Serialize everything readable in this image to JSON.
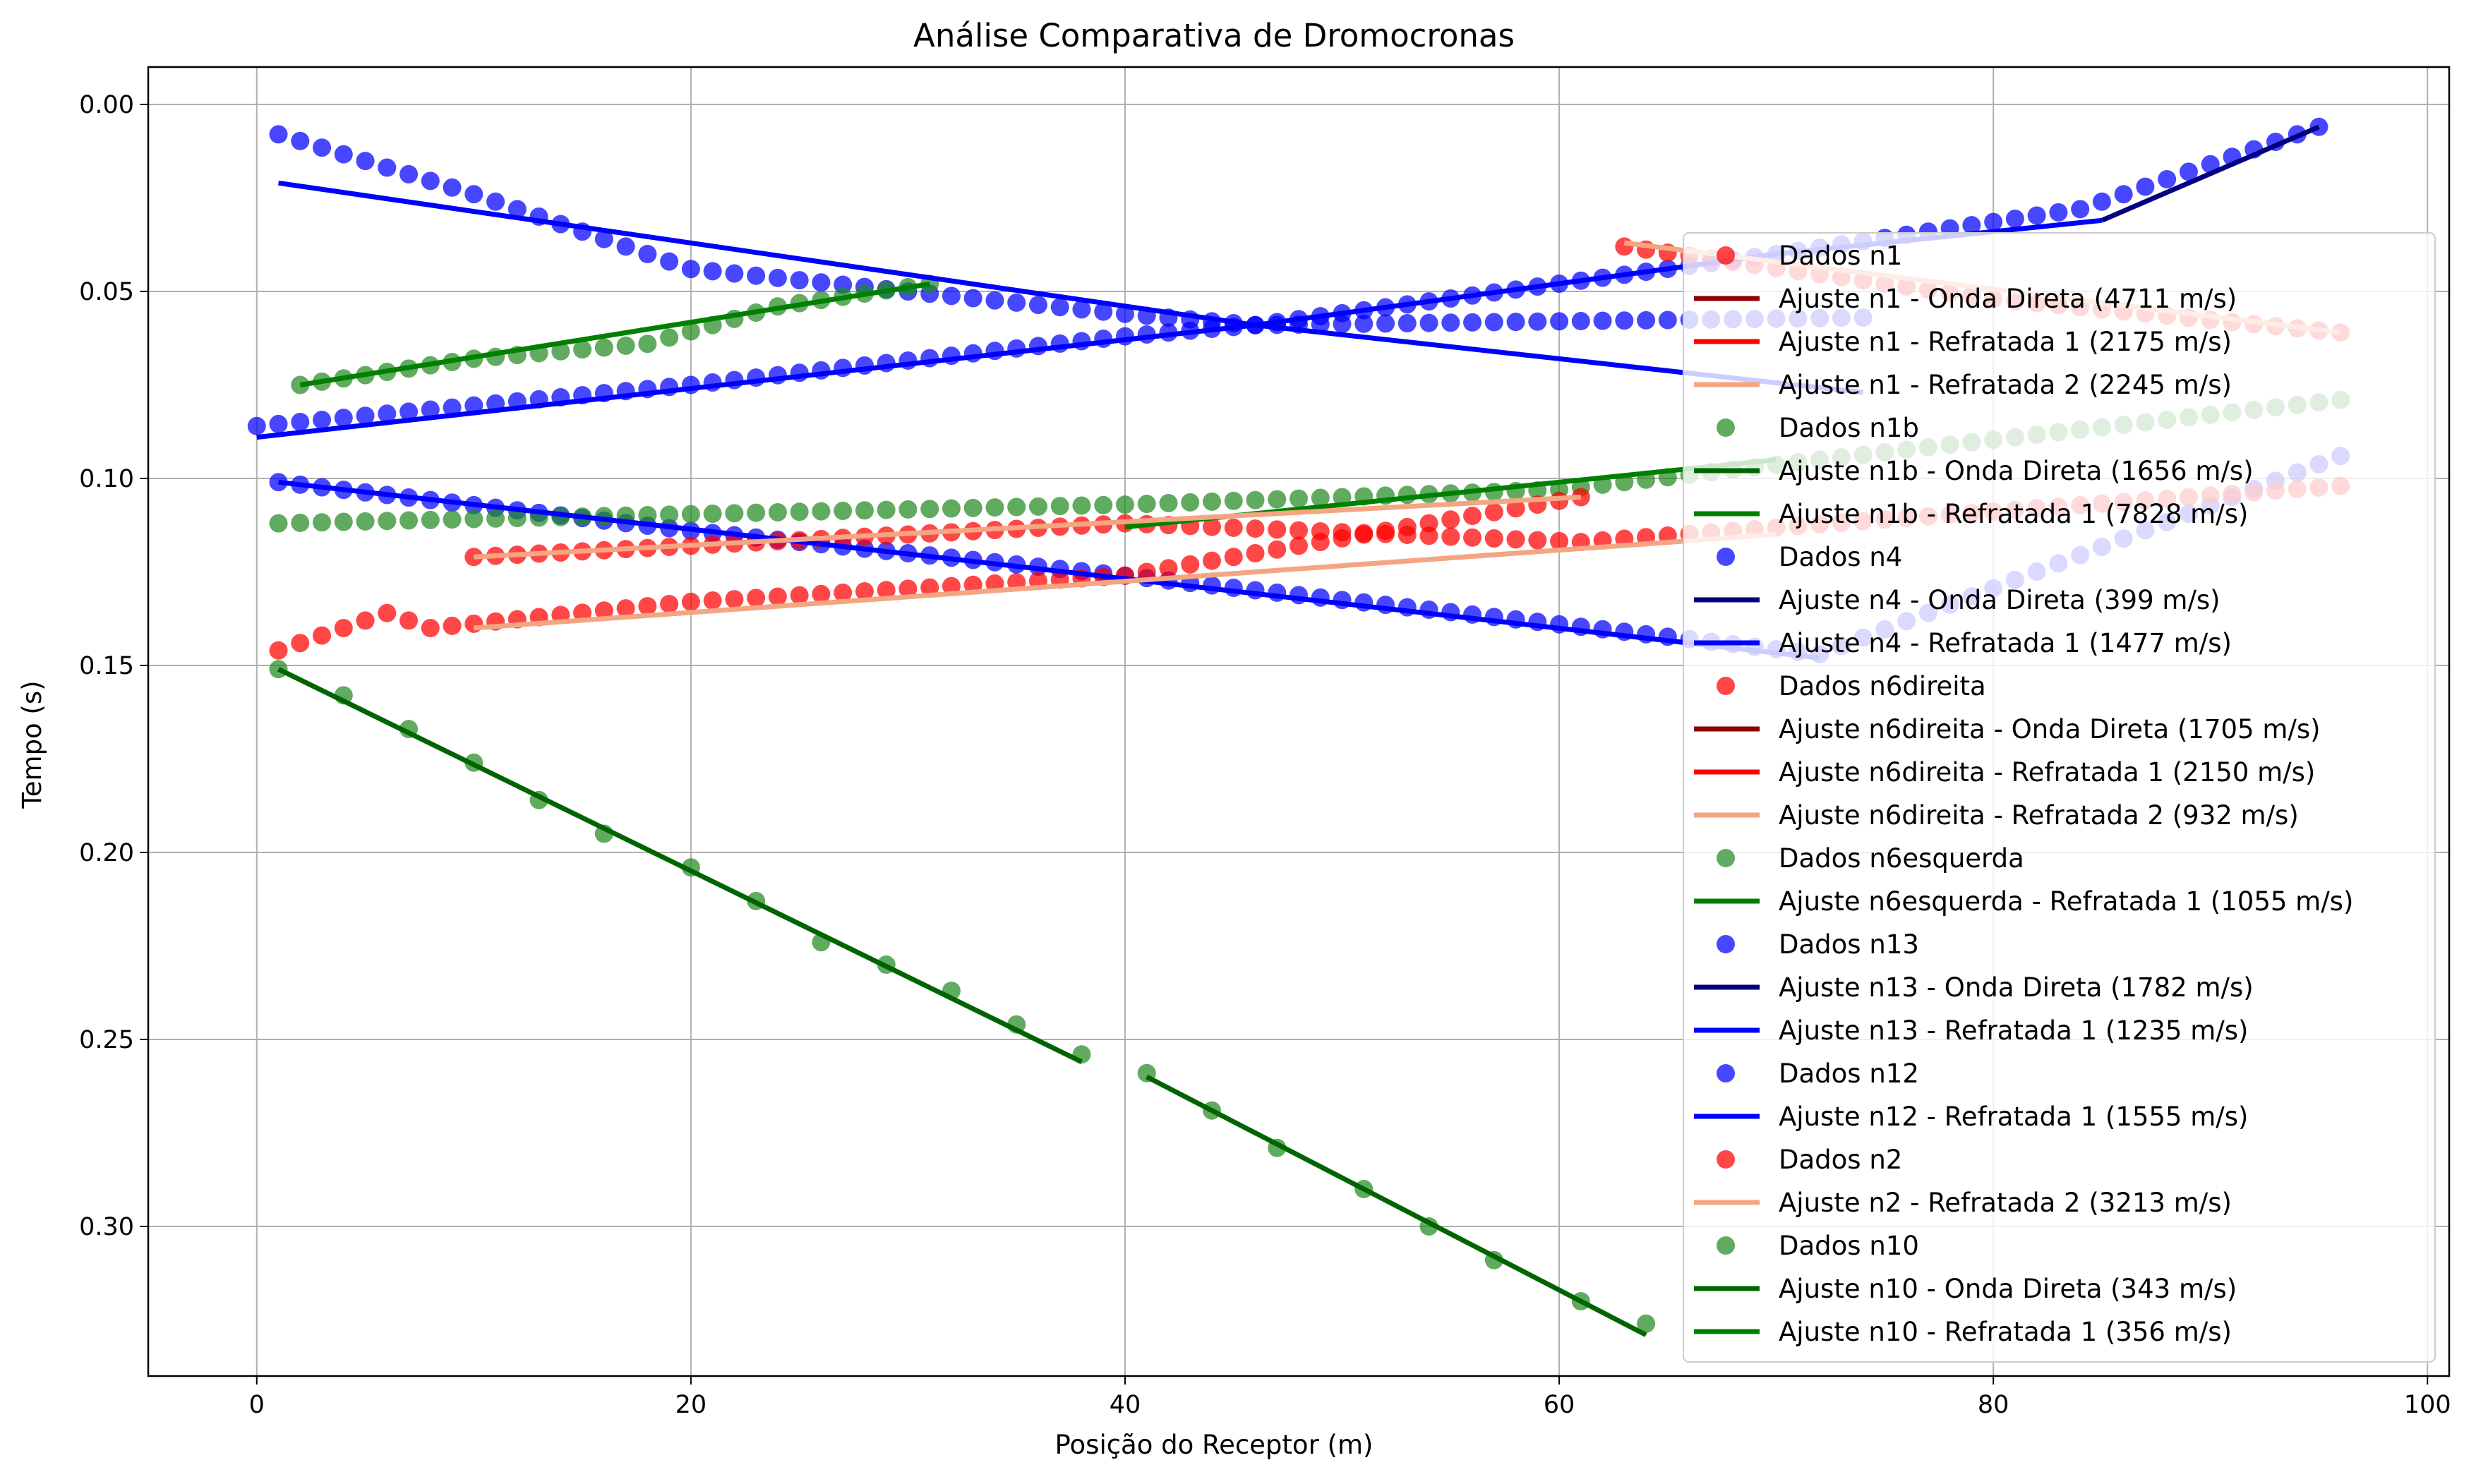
{
  "chart_data": {
    "type": "scatter",
    "title": "Análise Comparativa de Dromocronas",
    "xlabel": "Posição do Receptor (m)",
    "ylabel": "Tempo (s)",
    "xlim": [
      -5,
      101
    ],
    "ylim": [
      0.34,
      -0.01
    ],
    "y_inverted": true,
    "grid": true,
    "legend_position": "center-right",
    "xticks": [
      0,
      20,
      40,
      60,
      80,
      100
    ],
    "xtick_labels": [
      "0",
      "20",
      "40",
      "60",
      "80",
      "100"
    ],
    "yticks": [
      0.0,
      0.05,
      0.1,
      0.15,
      0.2,
      0.25,
      0.3
    ],
    "ytick_labels": [
      "0.00",
      "0.05",
      "0.10",
      "0.15",
      "0.20",
      "0.25",
      "0.30"
    ],
    "legend": [
      {
        "label": "Dados n1",
        "kind": "marker",
        "color": "#ff0000"
      },
      {
        "label": "Ajuste n1 - Onda Direta (4711 m/s)",
        "kind": "line",
        "color": "#8b0000"
      },
      {
        "label": "Ajuste n1 - Refratada 1 (2175 m/s)",
        "kind": "line",
        "color": "#ff0000"
      },
      {
        "label": "Ajuste n1 - Refratada 2 (2245 m/s)",
        "kind": "line",
        "color": "#f4a582"
      },
      {
        "label": "Dados n1b",
        "kind": "marker",
        "color": "#228b22"
      },
      {
        "label": "Ajuste n1b - Onda Direta (1656 m/s)",
        "kind": "line",
        "color": "#006400"
      },
      {
        "label": "Ajuste n1b - Refratada 1 (7828 m/s)",
        "kind": "line",
        "color": "#008000"
      },
      {
        "label": "Dados n4",
        "kind": "marker",
        "color": "#0000ff"
      },
      {
        "label": "Ajuste n4 - Onda Direta (399 m/s)",
        "kind": "line",
        "color": "#000080"
      },
      {
        "label": "Ajuste n4 - Refratada 1 (1477 m/s)",
        "kind": "line",
        "color": "#0000ff"
      },
      {
        "label": "Dados n6direita",
        "kind": "marker",
        "color": "#ff0000"
      },
      {
        "label": "Ajuste n6direita - Onda Direta (1705 m/s)",
        "kind": "line",
        "color": "#8b0000"
      },
      {
        "label": "Ajuste n6direita - Refratada 1 (2150 m/s)",
        "kind": "line",
        "color": "#ff0000"
      },
      {
        "label": "Ajuste n6direita - Refratada 2 (932 m/s)",
        "kind": "line",
        "color": "#f4a582"
      },
      {
        "label": "Dados n6esquerda",
        "kind": "marker",
        "color": "#228b22"
      },
      {
        "label": "Ajuste n6esquerda - Refratada 1 (1055 m/s)",
        "kind": "line",
        "color": "#008000"
      },
      {
        "label": "Dados n13",
        "kind": "marker",
        "color": "#0000ff"
      },
      {
        "label": "Ajuste n13 - Onda Direta (1782 m/s)",
        "kind": "line",
        "color": "#000080"
      },
      {
        "label": "Ajuste n13 - Refratada 1 (1235 m/s)",
        "kind": "line",
        "color": "#0000ff"
      },
      {
        "label": "Dados n12",
        "kind": "marker",
        "color": "#0000ff"
      },
      {
        "label": "Ajuste n12 - Refratada 1 (1555 m/s)",
        "kind": "line",
        "color": "#0000ff"
      },
      {
        "label": "Dados n2",
        "kind": "marker",
        "color": "#ff0000"
      },
      {
        "label": "Ajuste n2 - Refratada 2 (3213 m/s)",
        "kind": "line",
        "color": "#f4a582"
      },
      {
        "label": "Dados n10",
        "kind": "marker",
        "color": "#228b22"
      },
      {
        "label": "Ajuste n10 - Onda Direta (343 m/s)",
        "kind": "line",
        "color": "#006400"
      },
      {
        "label": "Ajuste n10 - Refratada 1 (356 m/s)",
        "kind": "line",
        "color": "#008000"
      }
    ],
    "scatter_series": [
      {
        "name": "Dados n4",
        "color": "#0000ff",
        "x_start": 1,
        "x_end": 74,
        "step": 1,
        "knots": [
          [
            1,
            0.008
          ],
          [
            10,
            0.024
          ],
          [
            20,
            0.044
          ],
          [
            40,
            0.056
          ],
          [
            46,
            0.059
          ],
          [
            74,
            0.057
          ]
        ]
      },
      {
        "name": "Dados n13",
        "color": "#0000ff",
        "x_start": 0,
        "x_end": 95,
        "step": 1,
        "knots": [
          [
            0,
            0.086
          ],
          [
            20,
            0.075
          ],
          [
            40,
            0.062
          ],
          [
            46,
            0.059
          ],
          [
            70,
            0.04
          ],
          [
            84,
            0.028
          ],
          [
            95,
            0.006
          ]
        ]
      },
      {
        "name": "Dados n12",
        "color": "#0000ff",
        "x_start": 1,
        "x_end": 96,
        "step": 1,
        "knots": [
          [
            1,
            0.101
          ],
          [
            20,
            0.114
          ],
          [
            40,
            0.126
          ],
          [
            60,
            0.139
          ],
          [
            72,
            0.147
          ],
          [
            96,
            0.094
          ]
        ]
      },
      {
        "name": "Dados n6esquerda",
        "color": "#228b22",
        "x_start": 1,
        "x_end": 96,
        "step": 1,
        "knots": [
          [
            1,
            0.112
          ],
          [
            40,
            0.107
          ],
          [
            60,
            0.103
          ],
          [
            96,
            0.079
          ]
        ]
      },
      {
        "name": "Dados n1b",
        "color": "#228b22",
        "x_start": 2,
        "x_end": 31,
        "step": 1,
        "knots": [
          [
            2,
            0.075
          ],
          [
            10,
            0.068
          ],
          [
            18,
            0.064
          ],
          [
            24,
            0.054
          ],
          [
            31,
            0.048
          ]
        ]
      },
      {
        "name": "Dados n6direita",
        "color": "#ff0000",
        "x_start": 1,
        "x_end": 61,
        "step": 1,
        "knots": [
          [
            1,
            0.146
          ],
          [
            6,
            0.136
          ],
          [
            8,
            0.14
          ],
          [
            20,
            0.133
          ],
          [
            40,
            0.126
          ],
          [
            61,
            0.105
          ]
        ]
      },
      {
        "name": "Dados n1",
        "color": "#ff0000",
        "x_start": 10,
        "x_end": 96,
        "step": 1,
        "knots": [
          [
            10,
            0.121
          ],
          [
            40,
            0.112
          ],
          [
            61,
            0.117
          ],
          [
            96,
            0.102
          ]
        ]
      },
      {
        "name": "Dados n2",
        "color": "#ff0000",
        "x_start": 63,
        "x_end": 96,
        "step": 1,
        "knots": [
          [
            63,
            0.038
          ],
          [
            80,
            0.052
          ],
          [
            96,
            0.061
          ]
        ]
      },
      {
        "name": "Dados n10",
        "color": "#228b22",
        "x": [
          1,
          4,
          7,
          10,
          13,
          16,
          20,
          23,
          26,
          29,
          32,
          35,
          38,
          41,
          44,
          47,
          51,
          54,
          57,
          61,
          64
        ],
        "y": [
          0.151,
          0.158,
          0.167,
          0.176,
          0.186,
          0.195,
          0.204,
          0.213,
          0.224,
          0.23,
          0.237,
          0.246,
          0.254,
          0.259,
          0.269,
          0.279,
          0.29,
          0.3,
          0.309,
          0.32,
          0.326
        ]
      }
    ],
    "fit_lines": [
      {
        "name": "Ajuste n4 - Refratada 1 (1477 m/s)",
        "color": "#0000ff",
        "points": [
          [
            1,
            0.021
          ],
          [
            46,
            0.059
          ],
          [
            74,
            0.077
          ]
        ]
      },
      {
        "name": "Ajuste n13 - Refratada 1 (1235 m/s)",
        "color": "#0000ff",
        "points": [
          [
            0,
            0.089
          ],
          [
            46,
            0.059
          ],
          [
            70,
            0.04
          ],
          [
            85,
            0.031
          ]
        ]
      },
      {
        "name": "Ajuste n13 - Onda Direta (1782 m/s)",
        "color": "#000080",
        "points": [
          [
            85,
            0.031
          ],
          [
            95,
            0.006
          ]
        ]
      },
      {
        "name": "Ajuste n12 - Refratada 1 (1555 m/s)",
        "color": "#0000ff",
        "points": [
          [
            1,
            0.101
          ],
          [
            72,
            0.148
          ]
        ]
      },
      {
        "name": "Ajuste n1b - Refratada 1 (7828 m/s)",
        "color": "#008000",
        "points": [
          [
            2,
            0.075
          ],
          [
            31,
            0.048
          ]
        ]
      },
      {
        "name": "Ajuste n6esquerda - Refratada 1 (1055 m/s)",
        "color": "#008000",
        "points": [
          [
            40,
            0.113
          ],
          [
            70,
            0.095
          ]
        ]
      },
      {
        "name": "Ajuste n6direita - Refratada 2 (932 m/s)",
        "color": "#f4a582",
        "points": [
          [
            10,
            0.121
          ],
          [
            61,
            0.105
          ]
        ]
      },
      {
        "name": "Ajuste n1 - Refratada 2 (2245 m/s)",
        "color": "#f4a582",
        "points": [
          [
            10,
            0.14
          ],
          [
            70,
            0.115
          ]
        ]
      },
      {
        "name": "Ajuste n2 - Refratada 2 (3213 m/s)",
        "color": "#f4a582",
        "points": [
          [
            63,
            0.037
          ],
          [
            96,
            0.061
          ]
        ]
      },
      {
        "name": "Ajuste n10 - Onda Direta (343 m/s)",
        "color": "#006400",
        "points": [
          [
            1,
            0.151
          ],
          [
            38,
            0.256
          ]
        ]
      },
      {
        "name": "Ajuste n10 - Refratada 1 (356 m/s)",
        "color": "#006400",
        "points": [
          [
            41,
            0.26
          ],
          [
            64,
            0.329
          ]
        ]
      }
    ]
  }
}
